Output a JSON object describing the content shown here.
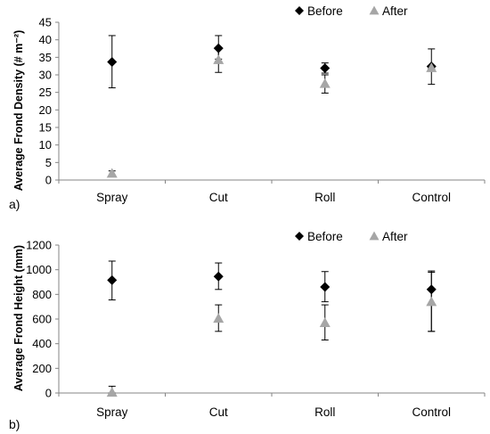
{
  "colors": {
    "before": "#000000",
    "after": "#a6a6a6",
    "axis": "#858585"
  },
  "chart_data": [
    {
      "type": "scatter",
      "panel_label": "a)",
      "ylabel": "Average Frond Density (# m⁻²)",
      "ylim": [
        0,
        45
      ],
      "yticks": [
        "0",
        "5",
        "10",
        "15",
        "20",
        "25",
        "30",
        "35",
        "40",
        "45"
      ],
      "categories": [
        "Spray",
        "Cut",
        "Roll",
        "Control"
      ],
      "series": [
        {
          "name": "Before",
          "marker": "diamond",
          "values": [
            33.7,
            37.6,
            31.9,
            32.4
          ],
          "err_low": [
            26.3,
            34.5,
            30.5,
            27.3
          ],
          "err_high": [
            41.2,
            41.2,
            33.4,
            37.4
          ]
        },
        {
          "name": "After",
          "marker": "triangle",
          "values": [
            1.9,
            34.3,
            27.5,
            32.0
          ],
          "err_low": [
            1.4,
            30.7,
            24.8,
            31.8
          ],
          "err_high": [
            2.6,
            37.6,
            30.0,
            32.6
          ]
        }
      ]
    },
    {
      "type": "scatter",
      "panel_label": "b)",
      "ylabel": "Average Frond Height (mm)",
      "ylim": [
        0,
        1200
      ],
      "yticks": [
        "0",
        "200",
        "400",
        "600",
        "800",
        "1000",
        "1200"
      ],
      "categories": [
        "Spray",
        "Cut",
        "Roll",
        "Control"
      ],
      "series": [
        {
          "name": "Before",
          "marker": "diamond",
          "values": [
            915,
            945,
            860,
            840
          ],
          "err_low": [
            755,
            840,
            740,
            500
          ],
          "err_high": [
            1070,
            1055,
            985,
            980
          ]
        },
        {
          "name": "After",
          "marker": "triangle",
          "values": [
            5,
            605,
            570,
            740
          ],
          "err_low": [
            0,
            500,
            430,
            500
          ],
          "err_high": [
            55,
            715,
            715,
            990
          ]
        }
      ]
    }
  ]
}
